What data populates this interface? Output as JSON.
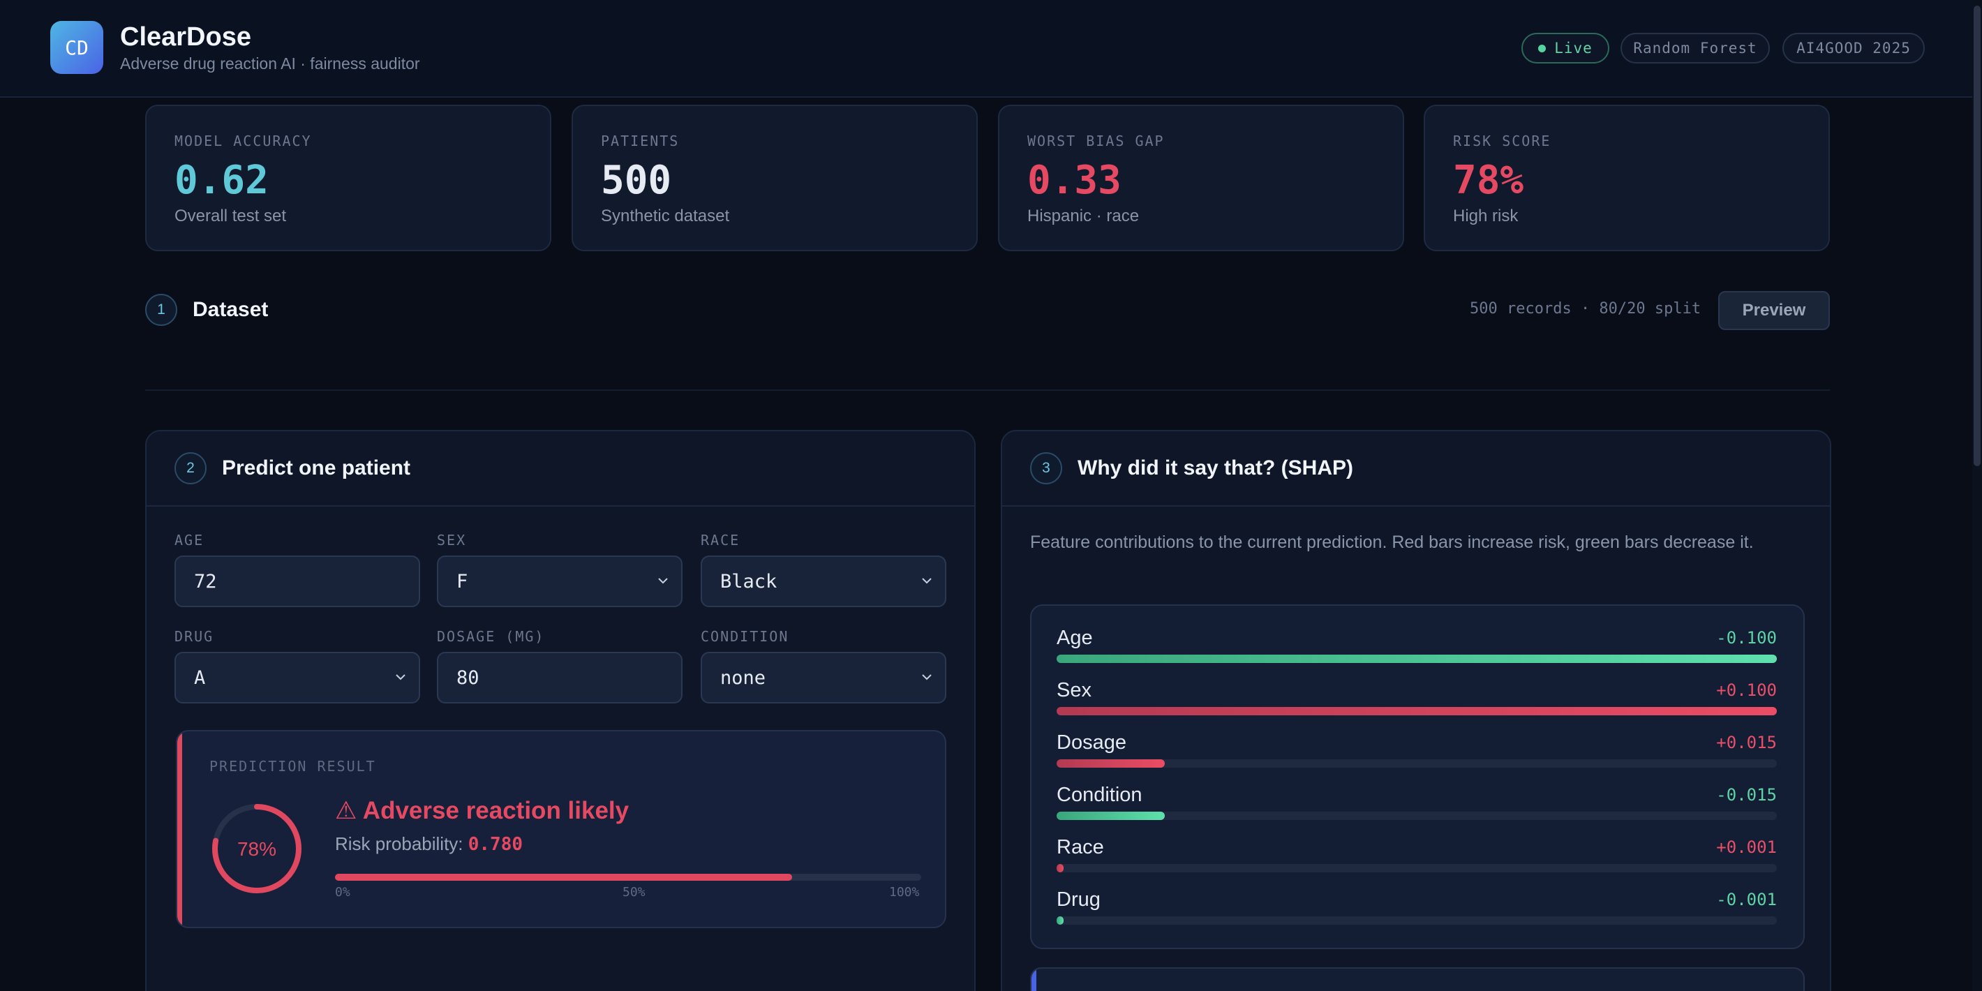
{
  "header": {
    "logo_text": "CD",
    "title": "ClearDose",
    "subtitle": "Adverse drug reaction AI · fairness auditor",
    "badges": [
      "Live",
      "Random Forest",
      "AI4GOOD 2025"
    ]
  },
  "stats": [
    {
      "label": "MODEL ACCURACY",
      "value": "0.62",
      "sub": "Overall test set",
      "color": "#5fc9d8"
    },
    {
      "label": "PATIENTS",
      "value": "500",
      "sub": "Synthetic dataset",
      "color": "#e6ebf3"
    },
    {
      "label": "WORST BIAS GAP",
      "value": "0.33",
      "sub": "Hispanic · race",
      "color": "#e64a62"
    },
    {
      "label": "RISK SCORE",
      "value": "78%",
      "sub": "High risk",
      "color": "#e64a62"
    }
  ],
  "dataset": {
    "number": "1",
    "title": "Dataset",
    "meta": "500 records · 80/20 split",
    "preview_label": "Preview"
  },
  "predict": {
    "number": "2",
    "title": "Predict one patient",
    "fields": {
      "age": {
        "label": "AGE",
        "value": "72"
      },
      "sex": {
        "label": "SEX",
        "value": "F"
      },
      "race": {
        "label": "RACE",
        "value": "Black"
      },
      "drug": {
        "label": "DRUG",
        "value": "A"
      },
      "dosage": {
        "label": "DOSAGE (MG)",
        "value": "80"
      },
      "condition": {
        "label": "CONDITION",
        "value": "none"
      }
    },
    "result": {
      "label": "PREDICTION RESULT",
      "gauge_text": "78%",
      "risk_fraction": 0.78,
      "title": "⚠ Adverse reaction likely",
      "prob_label": "Risk probability:",
      "prob_value": "0.780",
      "ticks": [
        "0%",
        "50%",
        "100%"
      ]
    }
  },
  "shap": {
    "number": "3",
    "title": "Why did it say that? (SHAP)",
    "description": "Feature contributions to the current prediction. Red bars increase risk, green bars decrease it.",
    "max_abs": 0.1,
    "features": [
      {
        "name": "Age",
        "value": "-0.100",
        "num": -0.1
      },
      {
        "name": "Sex",
        "value": "+0.100",
        "num": 0.1
      },
      {
        "name": "Dosage",
        "value": "+0.015",
        "num": 0.015
      },
      {
        "name": "Condition",
        "value": "-0.015",
        "num": -0.015
      },
      {
        "name": "Race",
        "value": "+0.001",
        "num": 0.001
      },
      {
        "name": "Drug",
        "value": "-0.001",
        "num": -0.001
      }
    ]
  }
}
